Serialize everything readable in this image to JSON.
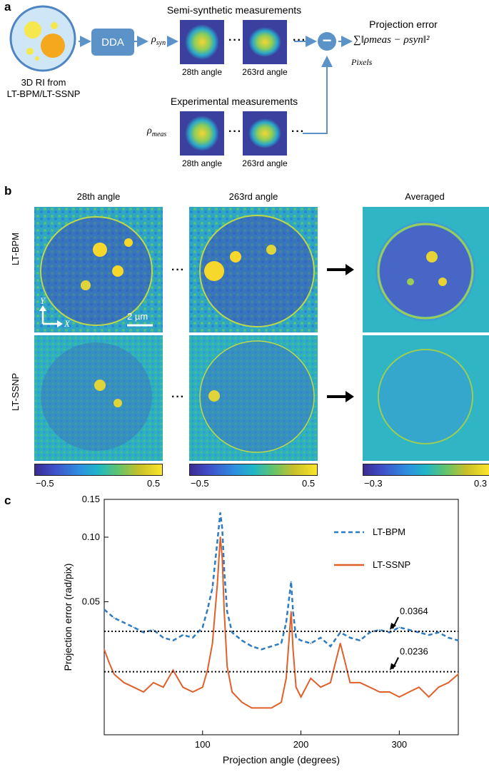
{
  "panel_a": {
    "letter": "a",
    "ri_label_line1": "3D RI from",
    "ri_label_line2": "LT-BPM/LT-SSNP",
    "dda": "DDA",
    "semi_title": "Semi-synthetic measurements",
    "rho_syn": "ρ",
    "rho_syn_sub": "syn",
    "exp_title": "Experimental measurements",
    "rho_meas": "ρ",
    "rho_meas_sub": "meas",
    "angle1": "28th angle",
    "angle2": "263rd angle",
    "dots": "···",
    "minus": "−",
    "proj_error_title": "Projection error",
    "formula": "∑‖ρmeas − ρsyn‖²",
    "pixels": "Pixels"
  },
  "panel_b": {
    "letter": "b",
    "col1": "28th angle",
    "col2": "263rd angle",
    "col3": "Averaged",
    "row1": "LT-BPM",
    "row2": "LT-SSNP",
    "axis_y": "Y",
    "axis_x": "X",
    "scale": "2 µm",
    "dots": "···",
    "cb1_min": "−0.5",
    "cb1_max": "0.5",
    "cb2_min": "−0.5",
    "cb2_max": "0.5",
    "cb3_min": "−0.3",
    "cb3_max": "0.3"
  },
  "panel_c": {
    "letter": "c"
  },
  "chart_data": {
    "type": "line",
    "xlabel": "Projection angle (degrees)",
    "ylabel": "Projection error (rad/pix)",
    "xlim": [
      0,
      360
    ],
    "ylim_log": [
      0.012,
      0.15
    ],
    "x_ticks": [
      100,
      200,
      300
    ],
    "y_ticks": [
      0.05,
      0.1,
      0.15
    ],
    "y_tick_labels": [
      "0.05",
      "0.10",
      "0.15"
    ],
    "legend_position": "top-right",
    "series": [
      {
        "name": "LT-BPM",
        "style": "dashed",
        "color": "#2f7bbf",
        "x": [
          0,
          10,
          20,
          30,
          40,
          50,
          60,
          70,
          80,
          90,
          100,
          105,
          110,
          115,
          118,
          120,
          122,
          125,
          130,
          140,
          150,
          160,
          170,
          180,
          185,
          190,
          192,
          195,
          200,
          210,
          220,
          230,
          240,
          250,
          260,
          270,
          280,
          290,
          300,
          310,
          320,
          330,
          340,
          350,
          360
        ],
        "y": [
          0.046,
          0.042,
          0.04,
          0.038,
          0.036,
          0.037,
          0.034,
          0.033,
          0.035,
          0.034,
          0.038,
          0.046,
          0.058,
          0.095,
          0.13,
          0.11,
          0.07,
          0.045,
          0.036,
          0.033,
          0.031,
          0.03,
          0.031,
          0.032,
          0.04,
          0.062,
          0.045,
          0.034,
          0.033,
          0.032,
          0.034,
          0.031,
          0.036,
          0.034,
          0.033,
          0.036,
          0.037,
          0.036,
          0.038,
          0.037,
          0.036,
          0.035,
          0.036,
          0.034,
          0.033
        ]
      },
      {
        "name": "LT-SSNP",
        "style": "solid",
        "color": "#e0602a",
        "x": [
          0,
          5,
          10,
          20,
          30,
          40,
          50,
          60,
          70,
          80,
          90,
          100,
          105,
          110,
          115,
          118,
          120,
          122,
          125,
          130,
          140,
          150,
          160,
          170,
          180,
          185,
          190,
          192,
          195,
          200,
          210,
          220,
          230,
          240,
          245,
          250,
          260,
          270,
          280,
          290,
          300,
          310,
          320,
          330,
          340,
          350,
          360
        ],
        "y": [
          0.03,
          0.026,
          0.023,
          0.021,
          0.02,
          0.019,
          0.021,
          0.02,
          0.024,
          0.02,
          0.019,
          0.02,
          0.024,
          0.032,
          0.06,
          0.1,
          0.08,
          0.045,
          0.025,
          0.019,
          0.017,
          0.016,
          0.016,
          0.016,
          0.017,
          0.022,
          0.045,
          0.03,
          0.02,
          0.018,
          0.022,
          0.02,
          0.021,
          0.032,
          0.026,
          0.021,
          0.021,
          0.02,
          0.019,
          0.019,
          0.018,
          0.019,
          0.02,
          0.018,
          0.02,
          0.021,
          0.023
        ]
      }
    ],
    "reference_lines": [
      {
        "value": 0.0364,
        "label": "0.0364",
        "style": "dotted"
      },
      {
        "value": 0.0236,
        "label": "0.0236",
        "style": "dotted"
      }
    ]
  }
}
